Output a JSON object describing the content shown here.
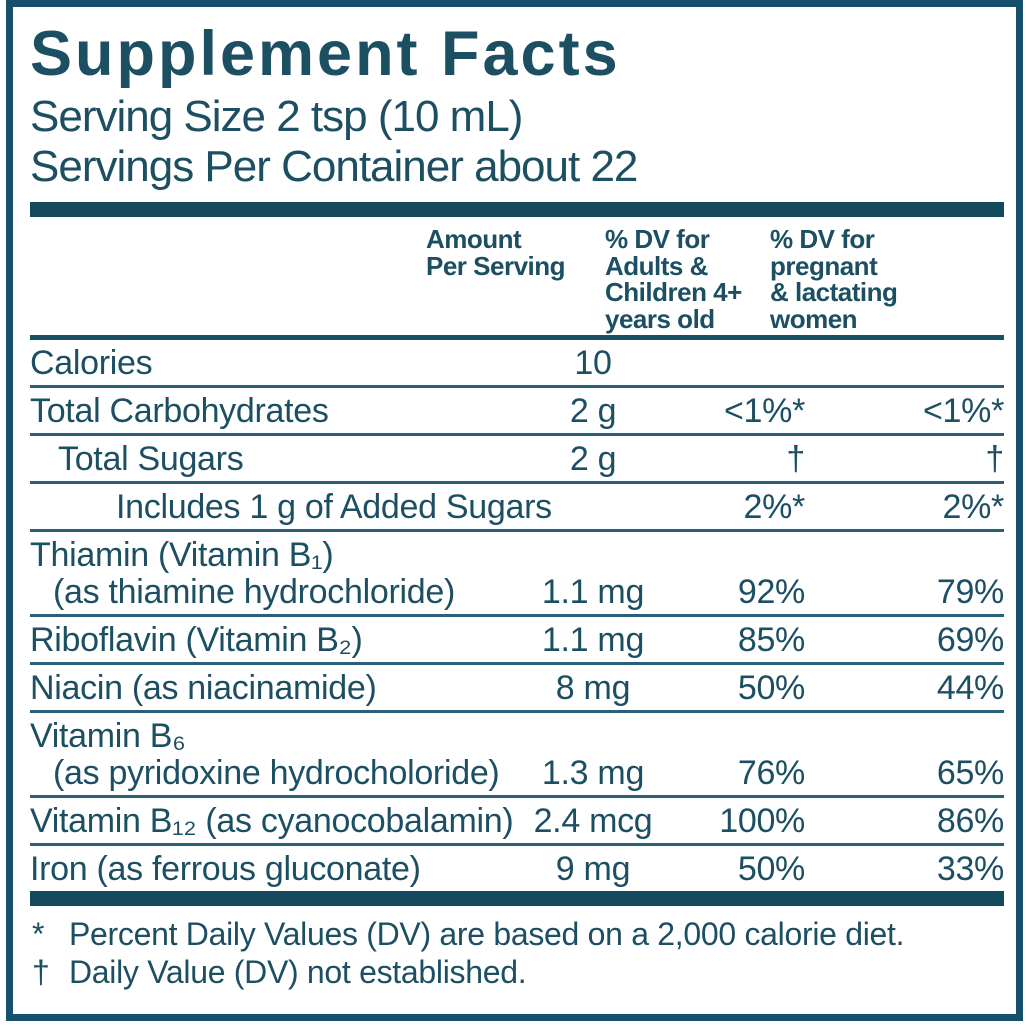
{
  "title": "Supplement Facts",
  "serving": {
    "size": "Serving Size 2 tsp (10 mL)",
    "per_container": "Servings Per Container about 22"
  },
  "columns": {
    "amount": [
      "Amount",
      "Per Serving"
    ],
    "dv_adults": [
      "% DV for",
      "Adults &",
      "Children 4+",
      "years old"
    ],
    "dv_pregnant": [
      "% DV for",
      "pregnant",
      "& lactating",
      "women"
    ]
  },
  "rows": [
    {
      "name": "Calories",
      "amount": "10",
      "dv1": "",
      "dv2": ""
    },
    {
      "name": "Total Carbohydrates",
      "amount": "2 g",
      "dv1": "<1%*",
      "dv2": "<1%*"
    },
    {
      "name": "Total Sugars",
      "amount": "2 g",
      "dv1": "†",
      "dv2": "†"
    },
    {
      "name": "Includes 1 g of Added Sugars",
      "amount": "",
      "dv1": "2%*",
      "dv2": "2%*"
    },
    {
      "name": "Thiamin (Vitamin B₁)",
      "name2": "(as thiamine hydrochloride)",
      "amount": "1.1 mg",
      "dv1": "92%",
      "dv2": "79%"
    },
    {
      "name": "Riboflavin (Vitamin B₂)",
      "amount": "1.1 mg",
      "dv1": "85%",
      "dv2": "69%"
    },
    {
      "name": "Niacin (as niacinamide)",
      "amount": "8 mg",
      "dv1": "50%",
      "dv2": "44%"
    },
    {
      "name": "Vitamin B₆",
      "name2": "(as pyridoxine hydrocholoride)",
      "amount": "1.3 mg",
      "dv1": "76%",
      "dv2": "65%"
    },
    {
      "name": "Vitamin B₁₂ (as cyanocobalamin)",
      "amount": "2.4 mcg",
      "dv1": "100%",
      "dv2": "86%"
    },
    {
      "name": "Iron (as ferrous gluconate)",
      "amount": "9 mg",
      "dv1": "50%",
      "dv2": "33%"
    }
  ],
  "footnotes": [
    {
      "marker": "*",
      "text": "Percent Daily Values (DV) are based on a 2,000 calorie diet."
    },
    {
      "marker": "†",
      "text": "Daily Value (DV) not established."
    }
  ],
  "colors": {
    "text": "#1d4f63",
    "accent_bar": "#154a5e",
    "border": "#17506a"
  }
}
